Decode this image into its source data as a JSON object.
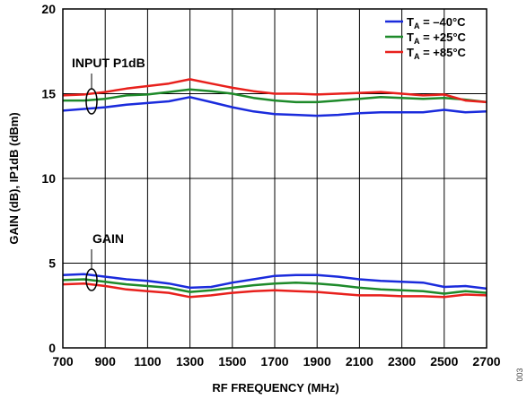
{
  "chart_data": {
    "type": "line",
    "xlabel": "RF FREQUENCY (MHz)",
    "ylabel": "GAIN (dB), IP1dB (dBm)",
    "xlim": [
      700,
      2700
    ],
    "ylim": [
      0,
      20
    ],
    "x_ticks": [
      "700",
      "900",
      "1100",
      "1300",
      "1500",
      "1700",
      "1900",
      "2100",
      "2300",
      "2500",
      "2700"
    ],
    "y_ticks": [
      "0",
      "5",
      "10",
      "15",
      "20"
    ],
    "grid": true,
    "legend_position": "top-right",
    "annotations": [
      "INPUT P1dB",
      "GAIN"
    ],
    "side_label": "003",
    "legend_label": "T",
    "legend_label_sub": "A",
    "x": [
      700,
      800,
      900,
      1000,
      1100,
      1200,
      1300,
      1400,
      1500,
      1600,
      1700,
      1800,
      1900,
      2000,
      2100,
      2200,
      2300,
      2400,
      2500,
      2600,
      2700
    ],
    "series": [
      {
        "name": "T_A = –40°C",
        "legend_value": " = –40°C",
        "group": "INPUT P1dB",
        "color": "#1a2bdc",
        "values": [
          14.0,
          14.1,
          14.2,
          14.35,
          14.45,
          14.55,
          14.8,
          14.5,
          14.2,
          13.95,
          13.8,
          13.75,
          13.7,
          13.75,
          13.85,
          13.9,
          13.9,
          13.9,
          14.05,
          13.9,
          13.95
        ]
      },
      {
        "name": "T_A = +25°C",
        "legend_value": " = +25°C",
        "group": "INPUT P1dB",
        "color": "#1e8a2a",
        "values": [
          14.6,
          14.6,
          14.7,
          14.9,
          14.95,
          15.1,
          15.25,
          15.15,
          15.0,
          14.75,
          14.6,
          14.5,
          14.5,
          14.6,
          14.7,
          14.8,
          14.75,
          14.7,
          14.75,
          14.65,
          14.5
        ]
      },
      {
        "name": "T_A = +85°C",
        "legend_value": " = +85°C",
        "group": "INPUT P1dB",
        "color": "#e8201c",
        "values": [
          14.9,
          14.95,
          15.1,
          15.3,
          15.45,
          15.6,
          15.85,
          15.6,
          15.35,
          15.15,
          15.0,
          15.0,
          14.95,
          15.0,
          15.05,
          15.1,
          15.0,
          14.9,
          14.95,
          14.6,
          14.5
        ]
      },
      {
        "name": "T_A = –40°C",
        "group": "GAIN",
        "color": "#1a2bdc",
        "values": [
          4.3,
          4.35,
          4.2,
          4.05,
          3.95,
          3.8,
          3.55,
          3.6,
          3.85,
          4.05,
          4.25,
          4.3,
          4.3,
          4.2,
          4.05,
          3.95,
          3.9,
          3.85,
          3.6,
          3.65,
          3.5
        ]
      },
      {
        "name": "T_A = +25°C",
        "group": "GAIN",
        "color": "#1e8a2a",
        "values": [
          4.0,
          4.05,
          3.9,
          3.75,
          3.65,
          3.55,
          3.3,
          3.4,
          3.55,
          3.7,
          3.8,
          3.85,
          3.8,
          3.7,
          3.55,
          3.45,
          3.4,
          3.35,
          3.2,
          3.35,
          3.25
        ]
      },
      {
        "name": "T_A = +85°C",
        "group": "GAIN",
        "color": "#e8201c",
        "values": [
          3.75,
          3.8,
          3.65,
          3.45,
          3.35,
          3.25,
          3.0,
          3.1,
          3.25,
          3.35,
          3.4,
          3.35,
          3.3,
          3.2,
          3.1,
          3.1,
          3.05,
          3.05,
          3.0,
          3.15,
          3.1
        ]
      }
    ]
  }
}
